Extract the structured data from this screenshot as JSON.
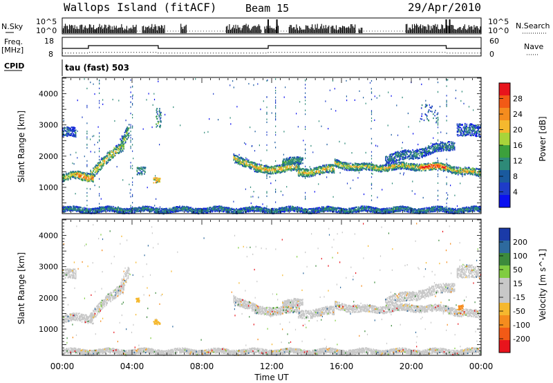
{
  "header": {
    "station": "Wallops Island (fitACF)",
    "beam": "Beam 15",
    "date": "29/Apr/2010"
  },
  "chart_data": [
    {
      "type": "line",
      "panel": "noise",
      "left_label": "N.Sky",
      "right_label": "N.Search",
      "left_ticks": [
        "10^5",
        "10^0"
      ],
      "right_ticks": [
        "10^5",
        "10^0"
      ],
      "x_ticks": [
        0,
        4,
        8,
        12,
        16,
        20,
        24
      ],
      "series": [
        {
          "style": "solid bars",
          "active_ranges_hours": [
            [
              0.0,
              1.9
            ],
            [
              1.9,
              4.3
            ],
            [
              4.6,
              5.9
            ],
            [
              6.8,
              7.1
            ],
            [
              9.4,
              11.4
            ],
            [
              11.6,
              12.4
            ],
            [
              13.0,
              15.3
            ],
            [
              15.4,
              16.8
            ],
            [
              17.0,
              17.2
            ],
            [
              19.7,
              24.0
            ]
          ],
          "tall_spikes_hours": [
            11.8,
            12.3,
            22.0,
            22.2
          ]
        }
      ]
    },
    {
      "type": "line",
      "panel": "frequency-nave",
      "left_label": "Freq.",
      "left_unit": "[MHz]",
      "left_ticks": [
        "18",
        "8"
      ],
      "left_range": [
        8,
        18
      ],
      "right_label": "Nave",
      "right_ticks": [
        "60",
        "0"
      ],
      "right_range": [
        0,
        60
      ],
      "series": [
        {
          "name": "Freq.",
          "style": "solid",
          "x": [
            0.0,
            1.5,
            1.5,
            5.5,
            5.5,
            11.8,
            11.8,
            22.0,
            22.0,
            24.0
          ],
          "y": [
            12.0,
            12.0,
            13.6,
            13.6,
            12.0,
            12.0,
            13.6,
            13.6,
            12.0,
            12.0
          ]
        },
        {
          "name": "Nave",
          "style": "dotted",
          "x": [
            0.0,
            1.5,
            1.5,
            5.5,
            5.5,
            11.8,
            11.8,
            22.0,
            22.0,
            24.0
          ],
          "y": [
            8,
            8,
            10,
            10,
            8,
            8,
            10,
            10,
            8,
            8
          ]
        }
      ]
    },
    {
      "type": "text",
      "panel": "cpid",
      "label": "CPID",
      "value": "tau (fast) 503"
    },
    {
      "type": "heatmap",
      "panel": "power",
      "ylabel": "Slant Range [km]",
      "yticks": [
        1000,
        2000,
        3000,
        4000
      ],
      "ylim": [
        180,
        4500
      ],
      "xlim": [
        0,
        24
      ],
      "colorbar": {
        "label": "Power [dB]",
        "ticks": [
          "28",
          "24",
          "20",
          "16",
          "12",
          "8",
          "4"
        ],
        "colors": [
          "#e8141c",
          "#f25a16",
          "#f58c1e",
          "#f5b82e",
          "#a8d43a",
          "#3ca03c",
          "#2e8a78",
          "#1a5a9e",
          "#1e3cc8",
          "#0a10f0"
        ]
      },
      "bands": [
        {
          "x0": 0.0,
          "x1": 0.8,
          "y0": 1320,
          "y1": 1400,
          "spread": 120,
          "intensity": 0.55
        },
        {
          "x0": 0.8,
          "x1": 1.8,
          "y0": 1400,
          "y1": 1360,
          "spread": 130,
          "intensity": 0.75
        },
        {
          "x0": 1.6,
          "x1": 3.5,
          "y0": 1450,
          "y1": 2400,
          "spread": 160,
          "intensity": 0.6
        },
        {
          "x0": 3.3,
          "x1": 3.8,
          "y0": 2400,
          "y1": 2900,
          "spread": 200,
          "intensity": 0.45
        },
        {
          "x0": 0.0,
          "x1": 0.8,
          "y0": 2800,
          "y1": 2750,
          "spread": 150,
          "intensity": 0.2
        },
        {
          "x0": 9.8,
          "x1": 11.2,
          "y0": 2000,
          "y1": 1600,
          "spread": 130,
          "intensity": 0.55
        },
        {
          "x0": 11.0,
          "x1": 13.6,
          "y0": 1600,
          "y1": 1650,
          "spread": 130,
          "intensity": 0.6
        },
        {
          "x0": 12.6,
          "x1": 13.8,
          "y0": 1800,
          "y1": 1900,
          "spread": 110,
          "intensity": 0.4
        },
        {
          "x0": 13.5,
          "x1": 15.6,
          "y0": 1500,
          "y1": 1600,
          "spread": 130,
          "intensity": 0.6
        },
        {
          "x0": 15.6,
          "x1": 17.0,
          "y0": 1800,
          "y1": 1650,
          "spread": 120,
          "intensity": 0.5
        },
        {
          "x0": 17.0,
          "x1": 20.5,
          "y0": 1650,
          "y1": 1700,
          "spread": 110,
          "intensity": 0.55
        },
        {
          "x0": 20.5,
          "x1": 22.0,
          "y0": 1700,
          "y1": 1650,
          "spread": 110,
          "intensity": 0.9
        },
        {
          "x0": 18.5,
          "x1": 22.5,
          "y0": 1900,
          "y1": 2400,
          "spread": 150,
          "intensity": 0.25
        },
        {
          "x0": 22.0,
          "x1": 24.0,
          "y0": 1650,
          "y1": 1450,
          "spread": 120,
          "intensity": 0.55
        },
        {
          "x0": 22.6,
          "x1": 24.0,
          "y0": 2900,
          "y1": 2800,
          "spread": 200,
          "intensity": 0.2
        },
        {
          "x0": 0.0,
          "x1": 24.0,
          "y0": 300,
          "y1": 300,
          "spread": 80,
          "intensity": 0.25
        }
      ],
      "blobs": [
        {
          "x": 5.4,
          "y": 1250,
          "dx": 0.2,
          "dy": 80,
          "intensity": 0.6
        },
        {
          "x": 5.5,
          "y": 3250,
          "dx": 0.15,
          "dy": 300,
          "intensity": 0.3
        },
        {
          "x": 4.5,
          "y": 1550,
          "dx": 0.25,
          "dy": 120,
          "intensity": 0.3
        },
        {
          "x": 21.0,
          "y": 3400,
          "dx": 0.5,
          "dy": 300,
          "intensity": 0.25
        }
      ]
    },
    {
      "type": "heatmap",
      "panel": "velocity",
      "ylabel": "Slant Range [km]",
      "yticks": [
        1000,
        2000,
        3000,
        4000
      ],
      "ylim": [
        180,
        4500
      ],
      "xlim": [
        0,
        24
      ],
      "xlabel": "Time UT",
      "xticks": [
        "00:00",
        "04:00",
        "08:00",
        "12:00",
        "16:00",
        "20:00",
        "00:00"
      ],
      "colorbar": {
        "label": "Velocity [m s^-1]",
        "ticks": [
          "200",
          "100",
          "50",
          "15",
          "-15",
          "-50",
          "-100",
          "-200"
        ],
        "colors": [
          "#1a3aa8",
          "#2e6a9e",
          "#3c8a3c",
          "#80cc40",
          "#c8c8c8",
          "#c8c8c8",
          "#f5b82e",
          "#f58c1e",
          "#f25a16",
          "#e8141c"
        ]
      },
      "ground_color": "#c8c8c8",
      "scatter_colors": [
        "#f5b82e",
        "#f58c1e",
        "#80cc40",
        "#3c8a3c",
        "#2e6a9e",
        "#e8141c"
      ],
      "highlights": [
        {
          "x": 5.4,
          "y": 1250,
          "dx": 0.2,
          "dy": 80,
          "color": "#f5b82e"
        },
        {
          "x": 4.3,
          "y": 1950,
          "dx": 0.1,
          "dy": 60,
          "color": "#f5b82e"
        },
        {
          "x": 22.8,
          "y": 1700,
          "dx": 0.15,
          "dy": 100,
          "color": "#f58c1e"
        }
      ]
    }
  ]
}
